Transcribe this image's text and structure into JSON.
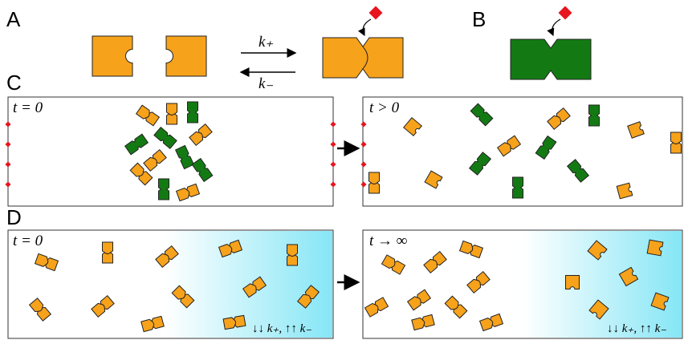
{
  "panels": {
    "a": "A",
    "b": "B",
    "c": "C",
    "d": "D"
  },
  "rates": {
    "forward": "k₊",
    "backward": "k₋"
  },
  "panel_c": {
    "left_label": "t = 0",
    "right_label": "t > 0"
  },
  "panel_d": {
    "left_label": "t = 0",
    "right_label": "t → ∞",
    "left_note": "↓↓ k₊,  ↑↑ k₋",
    "right_note": "↓↓ k₊,  ↑↑ k₋"
  }
}
